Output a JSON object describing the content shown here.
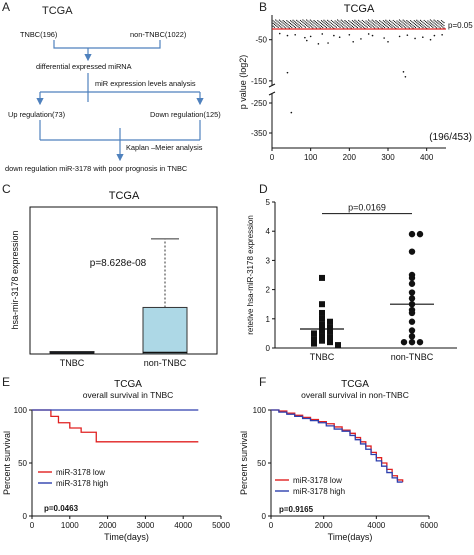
{
  "panels": {
    "A": {
      "letter": "A",
      "title": "TCGA",
      "flow": {
        "tnbc": "TNBC(196)",
        "non_tnbc": "non-TNBC(1022)",
        "diff": "differential expressed miRNA",
        "levels": "miR expression levels analysis",
        "up": "Up regulation(73)",
        "down": "Down regulation(125)",
        "km": "Kaplan –Meier analysis",
        "result": "down regulation miR-3178 with poor prognosis  in TNBC"
      },
      "colors": {
        "arrow": "#4f81bd"
      }
    },
    "B": {
      "letter": "B"
    },
    "C": {
      "letter": "C"
    },
    "D": {
      "letter": "D"
    },
    "E": {
      "letter": "E"
    },
    "F": {
      "letter": "F"
    }
  },
  "chart_data": [
    {
      "panel": "B",
      "type": "scatter",
      "title": "TCGA",
      "ylabel": "p value (log2)",
      "xlim": [
        0,
        450
      ],
      "xticks": [
        0,
        100,
        200,
        300,
        400
      ],
      "ylim": [
        -400,
        10
      ],
      "yticks": [
        -50,
        -150,
        -250,
        -350
      ],
      "axis_break": [
        -160,
        -220
      ],
      "threshold": -24,
      "threshold_label": "p=0.05",
      "annotation": "(196/453)",
      "sparse_points": [
        [
          40,
          -40
        ],
        [
          60,
          -38
        ],
        [
          85,
          -45
        ],
        [
          100,
          -42
        ],
        [
          130,
          -36
        ],
        [
          145,
          -58
        ],
        [
          160,
          -40
        ],
        [
          175,
          -44
        ],
        [
          200,
          -38
        ],
        [
          230,
          -48
        ],
        [
          260,
          -40
        ],
        [
          290,
          -46
        ],
        [
          300,
          -55
        ],
        [
          330,
          -42
        ],
        [
          350,
          -39
        ],
        [
          390,
          -44
        ],
        [
          410,
          -50
        ],
        [
          420,
          -40
        ],
        [
          440,
          -38
        ],
        [
          90,
          -52
        ],
        [
          20,
          -35
        ],
        [
          250,
          -36
        ],
        [
          370,
          -47
        ],
        [
          120,
          -60
        ],
        [
          210,
          -55
        ]
      ],
      "outliers": [
        [
          40,
          -130
        ],
        [
          340,
          -128
        ],
        [
          345,
          -140
        ],
        [
          50,
          -282
        ]
      ],
      "colors": {
        "threshold": "#e02020",
        "points": "#111111"
      }
    },
    {
      "panel": "C",
      "type": "box",
      "title": "TCGA",
      "ylabel": "hsa-mir-3178 expression",
      "ylim": [
        0,
        3
      ],
      "annotation": "p=8.628e-08",
      "categories": [
        "TNBC",
        "non-TNBC"
      ],
      "boxes": [
        {
          "q1": 0.0,
          "median": 0.02,
          "q3": 0.05,
          "whisker_low": 0.0,
          "whisker_high": 0.06,
          "color": "#2f3f55"
        },
        {
          "q1": 0.0,
          "median": 0.03,
          "q3": 0.95,
          "whisker_low": 0.0,
          "whisker_high": 2.35,
          "color": "#add8e6"
        }
      ]
    },
    {
      "panel": "D",
      "type": "scatter",
      "ylabel": "retetive hsa-miR-3178 expression",
      "ylim": [
        0,
        5
      ],
      "yticks": [
        0,
        1,
        2,
        3,
        4,
        5
      ],
      "categories": [
        "TNBC",
        "non-TNBC"
      ],
      "annotation": "p=0.0169",
      "series": [
        {
          "name": "TNBC",
          "marker": "square",
          "mean": 0.65,
          "values": [
            2.4,
            1.5,
            1.2,
            1.0,
            0.9,
            0.8,
            0.7,
            0.6,
            0.55,
            0.5,
            0.4,
            0.35,
            0.3,
            0.25,
            0.2,
            0.15,
            0.1
          ]
        },
        {
          "name": "non-TNBC",
          "marker": "circle",
          "mean": 1.5,
          "values": [
            3.9,
            3.9,
            3.3,
            2.5,
            2.4,
            2.2,
            1.9,
            1.7,
            1.5,
            1.3,
            1.2,
            0.9,
            0.6,
            0.4,
            0.2,
            0.2,
            0.2
          ]
        }
      ]
    },
    {
      "panel": "E",
      "type": "line",
      "title": "TCGA",
      "subtitle": "overall survival in TNBC",
      "xlabel": "Time(days)",
      "ylabel": "Percent survival",
      "xlim": [
        0,
        5000
      ],
      "xticks": [
        0,
        1000,
        2000,
        3000,
        4000,
        5000
      ],
      "ylim": [
        0,
        100
      ],
      "yticks": [
        0,
        50,
        100
      ],
      "annotation": "p=0.0463",
      "legend": "inside",
      "series": [
        {
          "name": "miR-3178 low",
          "color": "#e02020",
          "steps": [
            [
              0,
              100
            ],
            [
              500,
              100
            ],
            [
              500,
              94
            ],
            [
              700,
              94
            ],
            [
              700,
              88
            ],
            [
              1000,
              88
            ],
            [
              1000,
              83
            ],
            [
              1300,
              83
            ],
            [
              1300,
              79
            ],
            [
              1700,
              79
            ],
            [
              1700,
              70
            ],
            [
              4400,
              70
            ]
          ]
        },
        {
          "name": "miR-3178 high",
          "color": "#2d3fae",
          "steps": [
            [
              0,
              100
            ],
            [
              4400,
              100
            ]
          ]
        }
      ]
    },
    {
      "panel": "F",
      "type": "line",
      "title": "TCGA",
      "subtitle": "overall survival in non-TNBC",
      "xlabel": "Time(days)",
      "ylabel": "Percent survival",
      "xlim": [
        0,
        6000
      ],
      "xticks": [
        0,
        2000,
        4000,
        6000
      ],
      "ylim": [
        0,
        100
      ],
      "yticks": [
        0,
        50,
        100
      ],
      "annotation": "p=0.9165",
      "legend": "inside",
      "series": [
        {
          "name": "miR-3178 low",
          "color": "#e02020",
          "steps": [
            [
              0,
              100
            ],
            [
              300,
              99
            ],
            [
              600,
              97
            ],
            [
              900,
              95
            ],
            [
              1200,
              93
            ],
            [
              1500,
              91
            ],
            [
              1800,
              89
            ],
            [
              2100,
              87
            ],
            [
              2400,
              84
            ],
            [
              2700,
              81
            ],
            [
              3000,
              78
            ],
            [
              3200,
              74
            ],
            [
              3400,
              70
            ],
            [
              3600,
              66
            ],
            [
              3800,
              60
            ],
            [
              4000,
              55
            ],
            [
              4200,
              50
            ],
            [
              4400,
              44
            ],
            [
              4600,
              38
            ],
            [
              4800,
              34
            ],
            [
              5000,
              32
            ]
          ]
        },
        {
          "name": "miR-3178 high",
          "color": "#2d3fae",
          "steps": [
            [
              0,
              100
            ],
            [
              300,
              98
            ],
            [
              600,
              96
            ],
            [
              900,
              94
            ],
            [
              1200,
              92
            ],
            [
              1500,
              90
            ],
            [
              1800,
              88
            ],
            [
              2100,
              85
            ],
            [
              2400,
              82
            ],
            [
              2700,
              80
            ],
            [
              3000,
              76
            ],
            [
              3200,
              72
            ],
            [
              3400,
              68
            ],
            [
              3600,
              63
            ],
            [
              3800,
              58
            ],
            [
              4000,
              52
            ],
            [
              4200,
              47
            ],
            [
              4400,
              41
            ],
            [
              4600,
              36
            ],
            [
              4800,
              32
            ],
            [
              5000,
              32
            ]
          ]
        }
      ]
    }
  ]
}
